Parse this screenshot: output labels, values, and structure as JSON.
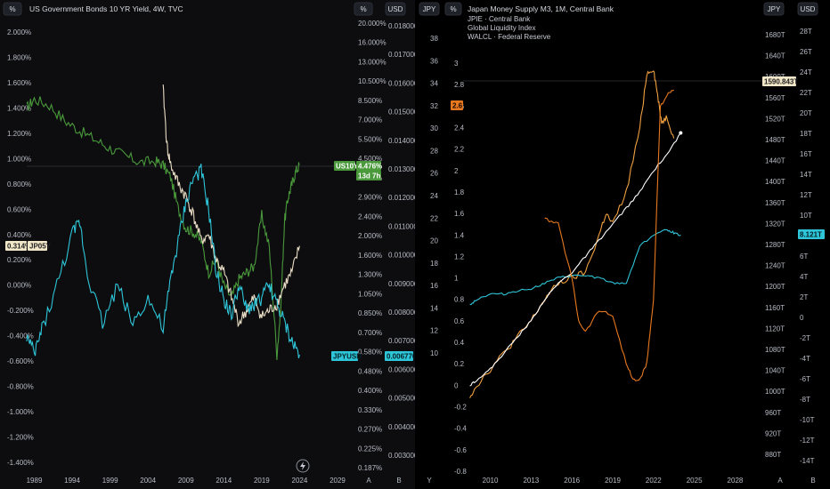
{
  "left_chart": {
    "title": "US Government Bonds 10 YR Yield, 4W, TVC",
    "buttons": {
      "pct_left": "%",
      "pct_right": "%",
      "usd": "USD",
      "a": "A",
      "b": "B"
    },
    "left_axis_labels": [
      "2.000%",
      "1.800%",
      "1.600%",
      "1.400%",
      "1.200%",
      "1.000%",
      "0.800%",
      "0.600%",
      "0.400%",
      "0.200%",
      "0.000%",
      "-0.200%",
      "-0.400%",
      "-0.600%",
      "-0.800%",
      "-1.000%",
      "-1.200%",
      "-1.400%"
    ],
    "mid_axis_labels": [
      "20.000%",
      "16.000%",
      "13.000%",
      "10.500%",
      "8.500%",
      "7.000%",
      "5.500%",
      "4.500%",
      "3.700%",
      "2.900%",
      "2.400%",
      "2.000%",
      "1.600%",
      "1.300%",
      "1.050%",
      "0.850%",
      "0.700%",
      "0.580%",
      "0.480%",
      "0.400%",
      "0.330%",
      "0.270%",
      "0.225%",
      "0.187%"
    ],
    "right_axis_labels": [
      "0.018000",
      "0.017000",
      "0.016000",
      "0.015000",
      "0.014000",
      "0.013000",
      "0.012000",
      "0.011000",
      "0.010000",
      "0.009000",
      "0.008000",
      "0.007000",
      "0.006000",
      "0.005000",
      "0.004000",
      "0.003000"
    ],
    "x_labels": [
      "1989",
      "1994",
      "1999",
      "2004",
      "2009",
      "2014",
      "2019",
      "2024",
      "2029"
    ],
    "tags": {
      "jp05y_value": "0.314%",
      "jp05y_name": "JP05Y",
      "us10y_name": "US10Y",
      "us10y_value": "4.476%",
      "us10y_sub": "13d 7h",
      "jpyusd_name": "JPYUSD",
      "jpyusd_value": "0.006770"
    }
  },
  "right_chart": {
    "title": "Japan Money Supply M3, 1M, Central Bank",
    "legend": [
      "JPIE · Central Bank",
      "Global Liquidity Index",
      "WALCL · Federal Reserve"
    ],
    "buttons": {
      "jpy_left": "JPY",
      "pct": "%",
      "jpy_right": "JPY",
      "usd": "USD",
      "y": "Y",
      "a": "A",
      "b": "B"
    },
    "outer_left_labels": [
      "38",
      "36",
      "34",
      "32",
      "30",
      "28",
      "26",
      "24",
      "22",
      "20",
      "18",
      "16",
      "14",
      "12",
      "10"
    ],
    "inner_left_labels": [
      "3",
      "2.8",
      "2.6",
      "2.4",
      "2.2",
      "2",
      "1.8",
      "1.6",
      "1.4",
      "1.2",
      "1",
      "0.8",
      "0.6",
      "0.4",
      "0.2",
      "0",
      "-0.2",
      "-0.4",
      "-0.6",
      "-0.8"
    ],
    "mid_right_labels": [
      "1680T",
      "1640T",
      "1600T",
      "1560T",
      "1520T",
      "1480T",
      "1440T",
      "1400T",
      "1360T",
      "1320T",
      "1280T",
      "1240T",
      "1200T",
      "1160T",
      "1120T",
      "1080T",
      "1040T",
      "1000T",
      "960T",
      "920T",
      "880T"
    ],
    "far_right_labels": [
      "28T",
      "26T",
      "24T",
      "22T",
      "20T",
      "18T",
      "16T",
      "14T",
      "12T",
      "10T",
      "8T",
      "6T",
      "4T",
      "2T",
      "0",
      "-2T",
      "-4T",
      "-6T",
      "-8T",
      "-10T",
      "-12T",
      "-14T"
    ],
    "x_labels": [
      "2010",
      "2013",
      "2016",
      "2019",
      "2022",
      "2025",
      "2028"
    ],
    "tags": {
      "orange_value": "2.6",
      "m3_value": "1590.843T",
      "walcl_value": "8.121T"
    }
  },
  "colors": {
    "green": "#4a9a3c",
    "beige": "#e8dcc4",
    "cyan": "#2ec5d8",
    "orange": "#f0a040",
    "deep_orange": "#e8781e",
    "white": "#ffffff",
    "axis_text": "#b8bcc6",
    "background": "#0d0d0f"
  },
  "chart_data": [
    {
      "type": "line",
      "title": "US Government Bonds 10 YR Yield, 4W, TVC",
      "x_range": [
        1988,
        2031
      ],
      "series": [
        {
          "name": "US10Y",
          "x": [
            1988,
            1989,
            1991,
            1993,
            1995,
            1997,
            1999,
            2001,
            2003,
            2005,
            2006,
            2007,
            2008,
            2009,
            2010,
            2011,
            2012,
            2013,
            2014,
            2015,
            2016,
            2017,
            2018,
            2019,
            2020,
            2021,
            2021.5,
            2022,
            2022.5,
            2023,
            2023.5,
            2024
          ],
          "y": [
            1.4,
            1.47,
            1.42,
            1.3,
            1.22,
            1.15,
            1.08,
            1.02,
            0.97,
            0.98,
            0.95,
            0.85,
            0.6,
            0.45,
            0.42,
            0.35,
            0.1,
            0.2,
            0.0,
            -0.1,
            0.05,
            0.1,
            0.15,
            0.55,
            0.3,
            -0.55,
            -0.2,
            0.5,
            0.7,
            0.8,
            0.9,
            0.95
          ]
        },
        {
          "name": "JP05Y",
          "x": [
            2006,
            2006.5,
            2007,
            2008,
            2009,
            2010,
            2011,
            2012,
            2013,
            2014,
            2015,
            2016,
            2017,
            2018,
            2019,
            2020,
            2021,
            2022,
            2023,
            2024
          ],
          "y": [
            1.55,
            1.1,
            0.95,
            0.8,
            0.7,
            0.55,
            0.35,
            0.4,
            0.2,
            0.1,
            -0.1,
            -0.3,
            -0.2,
            -0.1,
            -0.25,
            -0.2,
            -0.15,
            0.0,
            0.1,
            0.31
          ]
        },
        {
          "name": "JPYUSD",
          "x": [
            1988,
            1989,
            1990,
            1992,
            1994,
            1995,
            1996,
            1998,
            2000,
            2002,
            2004,
            2006,
            2007,
            2008,
            2009,
            2010,
            2011,
            2012,
            2013,
            2014,
            2015,
            2016,
            2017,
            2018,
            2019,
            2020,
            2021,
            2022,
            2023,
            2024
          ],
          "y": [
            -0.4,
            -0.55,
            -0.35,
            0.0,
            0.4,
            0.5,
            0.1,
            -0.3,
            0.0,
            -0.3,
            -0.1,
            -0.35,
            0.05,
            0.35,
            0.65,
            0.85,
            0.9,
            0.6,
            0.1,
            -0.1,
            -0.25,
            0.0,
            -0.2,
            -0.15,
            -0.1,
            0.0,
            -0.15,
            -0.3,
            -0.45,
            -0.55
          ]
        }
      ],
      "last_values": {
        "US10Y": "4.476%",
        "JP05Y": "0.314%",
        "JPYUSD": "0.006770"
      }
    },
    {
      "type": "line",
      "title": "Japan Money Supply M3, 1M, Central Bank",
      "x_range": [
        2008,
        2030
      ],
      "series": [
        {
          "name": "JPIE · Central Bank",
          "x": [
            2008.5,
            2009,
            2010,
            2011,
            2012,
            2013,
            2014,
            2015,
            2016,
            2017,
            2018,
            2018.5,
            2019,
            2020,
            2021,
            2021.5,
            2022,
            2022.3,
            2022.6,
            2023,
            2023.5
          ],
          "y": [
            -0.1,
            0.0,
            0.15,
            0.3,
            0.45,
            0.6,
            0.8,
            0.95,
            1.0,
            1.05,
            1.4,
            1.6,
            1.5,
            1.8,
            2.4,
            2.9,
            2.95,
            2.7,
            2.45,
            2.5,
            2.3
          ]
        },
        {
          "name": "Global Liquidity Index",
          "x": [
            2008.5,
            2009,
            2010,
            2011,
            2012,
            2013,
            2014,
            2015,
            2016,
            2017,
            2018,
            2019,
            2020,
            2021,
            2022,
            2023,
            2023.5,
            2024
          ],
          "y": [
            0.75,
            0.8,
            0.85,
            0.85,
            0.88,
            0.9,
            0.95,
            1.0,
            1.02,
            1.02,
            1.0,
            0.95,
            0.95,
            1.3,
            1.4,
            1.45,
            1.42,
            1.4
          ]
        },
        {
          "name": "WALCL · Federal Reserve",
          "x": [
            2008.5,
            2009,
            2010,
            2011,
            2012,
            2013,
            2014,
            2015,
            2016,
            2017,
            2018,
            2019,
            2020,
            2021,
            2022,
            2023,
            2024
          ],
          "y": [
            0.0,
            0.05,
            0.15,
            0.3,
            0.45,
            0.6,
            0.8,
            0.95,
            1.05,
            1.2,
            1.35,
            1.5,
            1.65,
            1.8,
            2.0,
            2.15,
            2.35
          ]
        },
        {
          "name": "",
          "x": [
            2014,
            2015,
            2016,
            2016.5,
            2017,
            2018,
            2019,
            2020,
            2020.5,
            2021,
            2021.5,
            2022,
            2022.5,
            2023,
            2023.5
          ],
          "y": [
            1.55,
            1.5,
            1.0,
            0.6,
            0.5,
            0.7,
            0.65,
            0.2,
            0.05,
            0.05,
            0.2,
            0.8,
            2.6,
            2.7,
            2.75
          ]
        }
      ],
      "last_values": {
        "orange": "2.6",
        "M3": "1590.843T",
        "WALCL": "8.121T"
      }
    }
  ]
}
